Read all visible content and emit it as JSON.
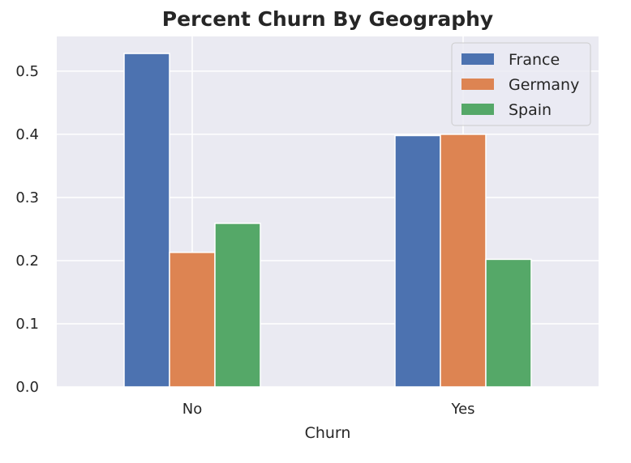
{
  "chart_data": {
    "type": "bar",
    "title": "Percent Churn By Geography",
    "xlabel": "Churn",
    "ylabel": "",
    "categories": [
      "No",
      "Yes"
    ],
    "series": [
      {
        "name": "France",
        "values": [
          0.528,
          0.398
        ],
        "color": "#4c72b0"
      },
      {
        "name": "Germany",
        "values": [
          0.213,
          0.4
        ],
        "color": "#dd8452"
      },
      {
        "name": "Spain",
        "values": [
          0.259,
          0.202
        ],
        "color": "#55a868"
      }
    ],
    "ylim": [
      0,
      0.555
    ],
    "yticks": [
      "0.0",
      "0.1",
      "0.2",
      "0.3",
      "0.4",
      "0.5"
    ],
    "ytick_values": [
      0.0,
      0.1,
      0.2,
      0.3,
      0.4,
      0.5
    ],
    "grid": true,
    "legend_position": "top-right",
    "background_color": "#eaeaf2",
    "grid_color": "#ffffff"
  }
}
